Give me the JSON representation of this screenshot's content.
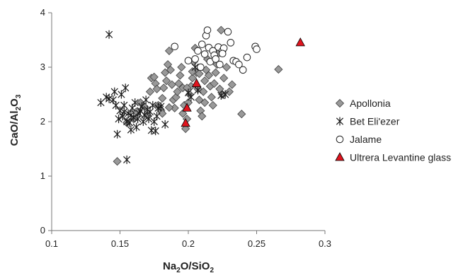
{
  "colors": {
    "apollonia_fill": "#999999",
    "apollonia_stroke": "#404040",
    "beteliezer_stroke": "#1a1a1a",
    "jalame_fill": "#ffffff",
    "jalame_stroke": "#222222",
    "ultrera_fill": "#e0141e",
    "ultrera_stroke": "#000000",
    "axis": "#777777"
  },
  "chart_data": {
    "type": "scatter",
    "xlabel": {
      "main": "Na",
      "sub1": "2",
      "mid": "O/SiO",
      "sub2": "2"
    },
    "ylabel": {
      "main": "CaO/Al",
      "sub1": "2",
      "mid": "O",
      "sub2": "3"
    },
    "xlim": [
      0.1,
      0.3
    ],
    "ylim": [
      0,
      4
    ],
    "xticks": [
      0.1,
      0.15,
      0.2,
      0.25,
      0.3
    ],
    "xtick_labels": [
      "0.1",
      "0.15",
      "0.2",
      "0.25",
      "0.3"
    ],
    "yticks": [
      0,
      1,
      2,
      3,
      4
    ],
    "ytick_labels": [
      "0",
      "1",
      "2",
      "3",
      "4"
    ],
    "grid": false,
    "legend_position": "right",
    "series": [
      {
        "name": "Apollonia",
        "marker": "diamond",
        "points": [
          [
            0.148,
            1.27
          ],
          [
            0.155,
            1.98
          ],
          [
            0.16,
            2.05
          ],
          [
            0.162,
            2.18
          ],
          [
            0.165,
            2.35
          ],
          [
            0.168,
            2.27
          ],
          [
            0.17,
            2.12
          ],
          [
            0.172,
            2.55
          ],
          [
            0.173,
            2.8
          ],
          [
            0.175,
            2.82
          ],
          [
            0.176,
            2.7
          ],
          [
            0.177,
            2.6
          ],
          [
            0.178,
            2.3
          ],
          [
            0.179,
            2.28
          ],
          [
            0.18,
            2.2
          ],
          [
            0.181,
            2.15
          ],
          [
            0.182,
            2.62
          ],
          [
            0.183,
            2.9
          ],
          [
            0.184,
            2.75
          ],
          [
            0.185,
            3.05
          ],
          [
            0.186,
            3.3
          ],
          [
            0.187,
            2.95
          ],
          [
            0.188,
            2.68
          ],
          [
            0.189,
            2.4
          ],
          [
            0.19,
            2.25
          ],
          [
            0.191,
            2.45
          ],
          [
            0.192,
            2.55
          ],
          [
            0.193,
            2.7
          ],
          [
            0.194,
            2.85
          ],
          [
            0.195,
            3.0
          ],
          [
            0.196,
            2.62
          ],
          [
            0.197,
            2.3
          ],
          [
            0.198,
            1.87
          ],
          [
            0.199,
            2.05
          ],
          [
            0.2,
            2.35
          ],
          [
            0.201,
            2.5
          ],
          [
            0.202,
            2.65
          ],
          [
            0.203,
            2.8
          ],
          [
            0.204,
            3.1
          ],
          [
            0.205,
            3.35
          ],
          [
            0.206,
            2.9
          ],
          [
            0.207,
            2.6
          ],
          [
            0.208,
            2.4
          ],
          [
            0.209,
            2.2
          ],
          [
            0.21,
            2.1
          ],
          [
            0.211,
            2.55
          ],
          [
            0.212,
            2.75
          ],
          [
            0.213,
            2.95
          ],
          [
            0.214,
            3.15
          ],
          [
            0.215,
            2.85
          ],
          [
            0.216,
            2.65
          ],
          [
            0.217,
            2.45
          ],
          [
            0.218,
            2.3
          ],
          [
            0.219,
            2.7
          ],
          [
            0.22,
            2.9
          ],
          [
            0.221,
            3.05
          ],
          [
            0.222,
            3.25
          ],
          [
            0.223,
            2.6
          ],
          [
            0.224,
            3.68
          ],
          [
            0.225,
            2.5
          ],
          [
            0.226,
            2.8
          ],
          [
            0.228,
            3.0
          ],
          [
            0.23,
            2.55
          ],
          [
            0.232,
            2.68
          ],
          [
            0.239,
            2.14
          ],
          [
            0.266,
            2.96
          ],
          [
            0.196,
            2.15
          ],
          [
            0.203,
            2.92
          ],
          [
            0.208,
            2.88
          ],
          [
            0.212,
            2.35
          ],
          [
            0.199,
            2.62
          ],
          [
            0.186,
            2.26
          ],
          [
            0.181,
            2.43
          ]
        ]
      },
      {
        "name": "Bet Eli'ezer",
        "marker": "asterisk",
        "points": [
          [
            0.142,
            3.6
          ],
          [
            0.136,
            2.35
          ],
          [
            0.14,
            2.45
          ],
          [
            0.142,
            2.42
          ],
          [
            0.145,
            2.4
          ],
          [
            0.146,
            2.55
          ],
          [
            0.147,
            2.3
          ],
          [
            0.148,
            1.77
          ],
          [
            0.149,
            2.05
          ],
          [
            0.15,
            2.2
          ],
          [
            0.151,
            2.5
          ],
          [
            0.152,
            2.1
          ],
          [
            0.153,
            2.3
          ],
          [
            0.154,
            2.62
          ],
          [
            0.155,
            2.0
          ],
          [
            0.155,
            1.3
          ],
          [
            0.156,
            2.15
          ],
          [
            0.157,
            1.98
          ],
          [
            0.158,
            1.85
          ],
          [
            0.159,
            2.25
          ],
          [
            0.16,
            2.08
          ],
          [
            0.161,
            2.35
          ],
          [
            0.162,
            1.9
          ],
          [
            0.163,
            2.05
          ],
          [
            0.164,
            2.15
          ],
          [
            0.165,
            2.2
          ],
          [
            0.166,
            2.28
          ],
          [
            0.167,
            2.0
          ],
          [
            0.168,
            2.12
          ],
          [
            0.169,
            2.4
          ],
          [
            0.17,
            2.22
          ],
          [
            0.171,
            2.05
          ],
          [
            0.172,
            2.18
          ],
          [
            0.173,
            1.84
          ],
          [
            0.174,
            2.3
          ],
          [
            0.175,
            2.0
          ],
          [
            0.176,
            1.83
          ],
          [
            0.177,
            2.1
          ],
          [
            0.178,
            2.25
          ],
          [
            0.18,
            2.28
          ],
          [
            0.183,
            1.95
          ],
          [
            0.2,
            2.53
          ],
          [
            0.202,
            2.45
          ],
          [
            0.205,
            3.0
          ],
          [
            0.207,
            2.58
          ],
          [
            0.224,
            2.48
          ],
          [
            0.227,
            2.5
          ],
          [
            0.153,
            2.18
          ],
          [
            0.158,
            2.12
          ]
        ]
      },
      {
        "name": "Jalame",
        "marker": "circle",
        "points": [
          [
            0.19,
            3.38
          ],
          [
            0.2,
            3.12
          ],
          [
            0.205,
            3.15
          ],
          [
            0.207,
            3.3
          ],
          [
            0.209,
            3.0
          ],
          [
            0.21,
            3.42
          ],
          [
            0.212,
            3.24
          ],
          [
            0.213,
            3.58
          ],
          [
            0.214,
            3.68
          ],
          [
            0.215,
            3.36
          ],
          [
            0.216,
            3.1
          ],
          [
            0.218,
            3.3
          ],
          [
            0.219,
            3.22
          ],
          [
            0.22,
            3.15
          ],
          [
            0.222,
            3.37
          ],
          [
            0.223,
            3.05
          ],
          [
            0.225,
            3.3
          ],
          [
            0.226,
            3.35
          ],
          [
            0.229,
            3.65
          ],
          [
            0.231,
            3.45
          ],
          [
            0.233,
            3.12
          ],
          [
            0.235,
            3.1
          ],
          [
            0.237,
            3.05
          ],
          [
            0.24,
            2.95
          ],
          [
            0.243,
            3.18
          ],
          [
            0.249,
            3.38
          ],
          [
            0.25,
            3.33
          ],
          [
            0.225,
            3.25
          ]
        ]
      },
      {
        "name": "Ultrera Levantine glass",
        "marker": "triangle",
        "points": [
          [
            0.206,
            2.7
          ],
          [
            0.199,
            2.25
          ],
          [
            0.198,
            1.97
          ],
          [
            0.282,
            3.45
          ]
        ]
      }
    ]
  }
}
